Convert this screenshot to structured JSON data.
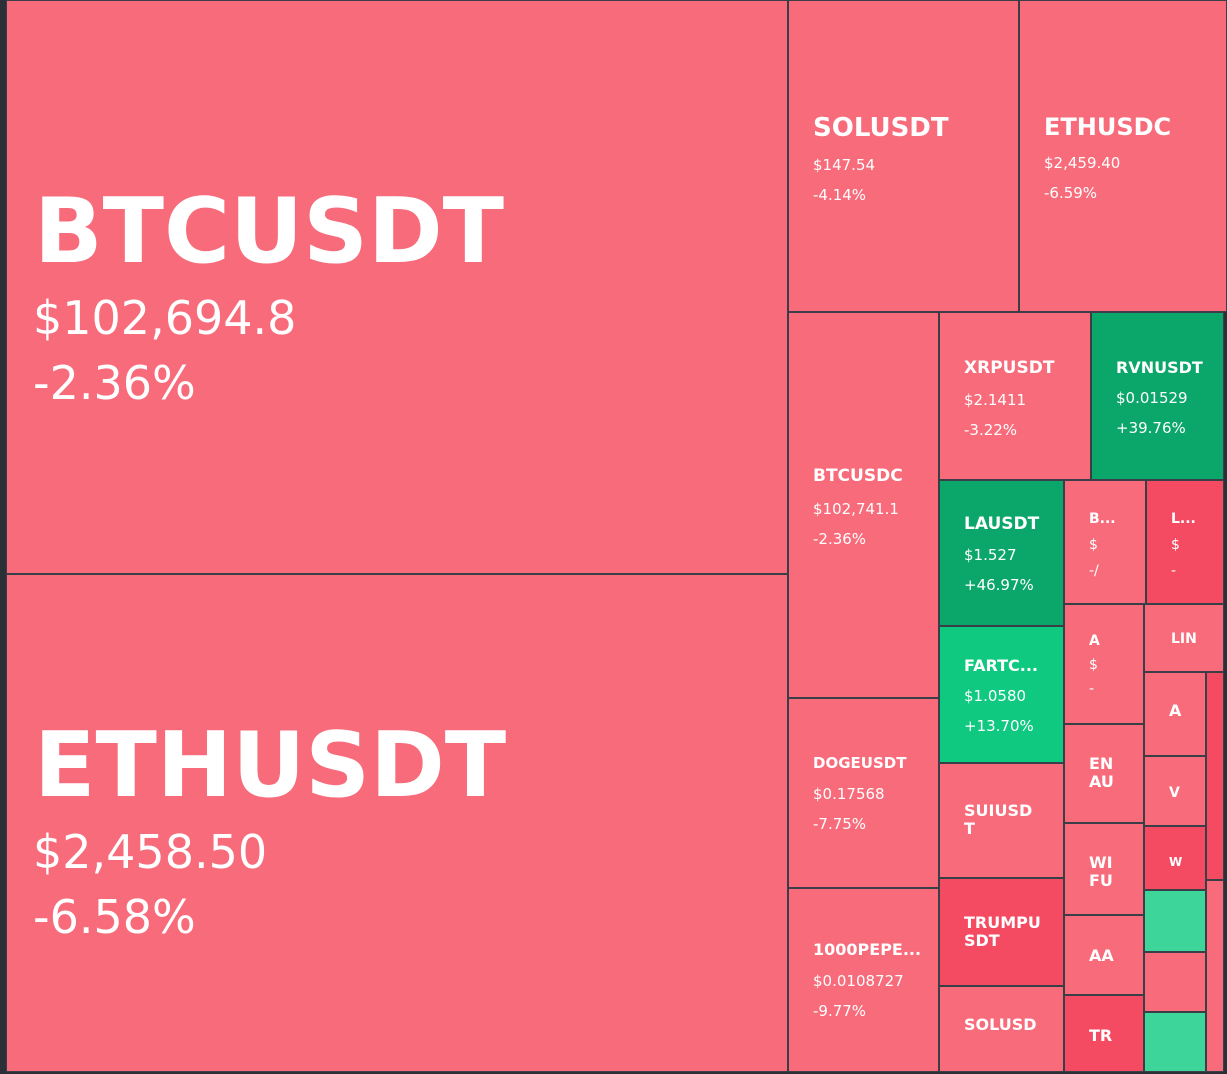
{
  "tiles": {
    "btcusdt": {
      "symbol": "BTCUSDT",
      "price": "$102,694.8",
      "change": "-2.36%"
    },
    "ethusdt": {
      "symbol": "ETHUSDT",
      "price": "$2,458.50",
      "change": "-6.58%"
    },
    "solusdt": {
      "symbol": "SOLUSDT",
      "price": "$147.54",
      "change": "-4.14%"
    },
    "ethusdc": {
      "symbol": "ETHUSDC",
      "price": "$2,459.40",
      "change": "-6.59%"
    },
    "btcusdc": {
      "symbol": "BTCUSDC",
      "price": "$102,741.1",
      "change": "-2.36%"
    },
    "xrpusdt": {
      "symbol": "XRPUSDT",
      "price": "$2.1411",
      "change": "-3.22%"
    },
    "rvnusdt": {
      "symbol": "RVNUSDT",
      "price": "$0.01529",
      "change": "+39.76%"
    },
    "lausdt": {
      "symbol": "LAUSDT",
      "price": "$1.527",
      "change": "+46.97%"
    },
    "fartc": {
      "symbol": "FARTC...",
      "price": "$1.0580",
      "change": "+13.70%"
    },
    "dogeusdt": {
      "symbol": "DOGEUSDT",
      "price": "$0.17568",
      "change": "-7.75%"
    },
    "suiusdt": {
      "symbol": "SUIUSD T"
    },
    "trumpusdt": {
      "symbol": "TRUMPU SDT"
    },
    "pepe": {
      "symbol": "1000PEPE...",
      "price": "$0.0108727",
      "change": "-9.77%"
    },
    "solusdc": {
      "symbol": "SOLUSD"
    },
    "b_small": {
      "symbol": "B...",
      "price": "$",
      "change": "-/"
    },
    "l_small": {
      "symbol": "L...",
      "price": "$",
      "change": "-"
    },
    "a_small": {
      "symbol": "A",
      "price": "$",
      "change": "-"
    },
    "lin": {
      "symbol": "LIN"
    },
    "a2": {
      "symbol": "A"
    },
    "en": {
      "symbol": "EN AU"
    },
    "v": {
      "symbol": "V"
    },
    "w": {
      "symbol": "W"
    },
    "wi": {
      "symbol": "WI FU"
    },
    "aa": {
      "symbol": "AA"
    },
    "tr": {
      "symbol": "TR"
    }
  }
}
